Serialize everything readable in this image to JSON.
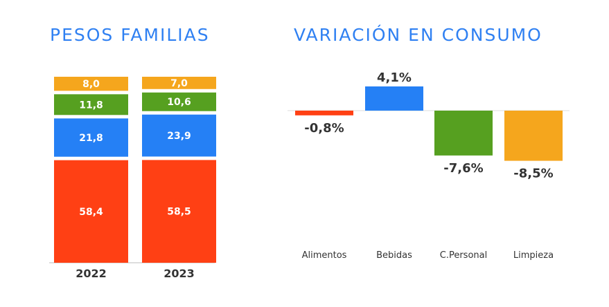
{
  "chart_data": [
    {
      "type": "bar",
      "stacked": true,
      "title": "PESOS FAMILIAS",
      "categories": [
        "2022",
        "2023"
      ],
      "series": [
        {
          "values": [
            58.4,
            58.5
          ],
          "labels": [
            "58,4",
            "58,5"
          ],
          "color": "#ff4014"
        },
        {
          "values": [
            21.8,
            23.9
          ],
          "labels": [
            "21,8",
            "23,9"
          ],
          "color": "#2580f5"
        },
        {
          "values": [
            11.8,
            10.6
          ],
          "labels": [
            "11,8",
            "10,6"
          ],
          "color": "#56a020"
        },
        {
          "values": [
            8.0,
            7.0
          ],
          "labels": [
            "8,0",
            "7,0"
          ],
          "color": "#f5a61d"
        }
      ]
    },
    {
      "type": "bar",
      "title": "VARIACIÓN EN CONSUMO",
      "categories": [
        "Alimentos",
        "Bebidas",
        "C.Personal",
        "Limpieza"
      ],
      "values": [
        -0.8,
        4.1,
        -7.6,
        -8.5
      ],
      "labels": [
        "-0,8%",
        "4,1%",
        "-7,6%",
        "-8,5%"
      ],
      "colors": [
        "#ff4014",
        "#2580f5",
        "#56a020",
        "#f5a61d"
      ]
    }
  ]
}
